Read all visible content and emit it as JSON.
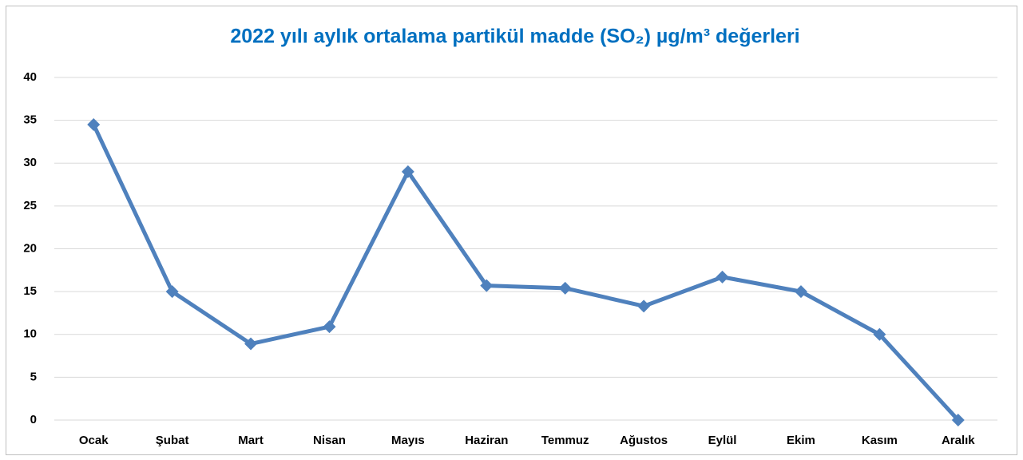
{
  "chart_data": {
    "type": "line",
    "title": "2022 yılı aylık ortalama partikül madde (SO₂) µg/m³ değerleri",
    "categories": [
      "Ocak",
      "Şubat",
      "Mart",
      "Nisan",
      "Mayıs",
      "Haziran",
      "Temmuz",
      "Ağustos",
      "Eylül",
      "Ekim",
      "Kasım",
      "Aralık"
    ],
    "series": [
      {
        "name": "SO₂",
        "color": "#4f81bd",
        "values": [
          34.5,
          15.0,
          8.9,
          10.9,
          29.0,
          15.7,
          15.4,
          13.3,
          16.7,
          15.0,
          10.0,
          0
        ]
      }
    ],
    "ylim": [
      0,
      40
    ],
    "yticks": [
      0,
      5,
      10,
      15,
      20,
      25,
      30,
      35,
      40
    ],
    "grid": true
  }
}
